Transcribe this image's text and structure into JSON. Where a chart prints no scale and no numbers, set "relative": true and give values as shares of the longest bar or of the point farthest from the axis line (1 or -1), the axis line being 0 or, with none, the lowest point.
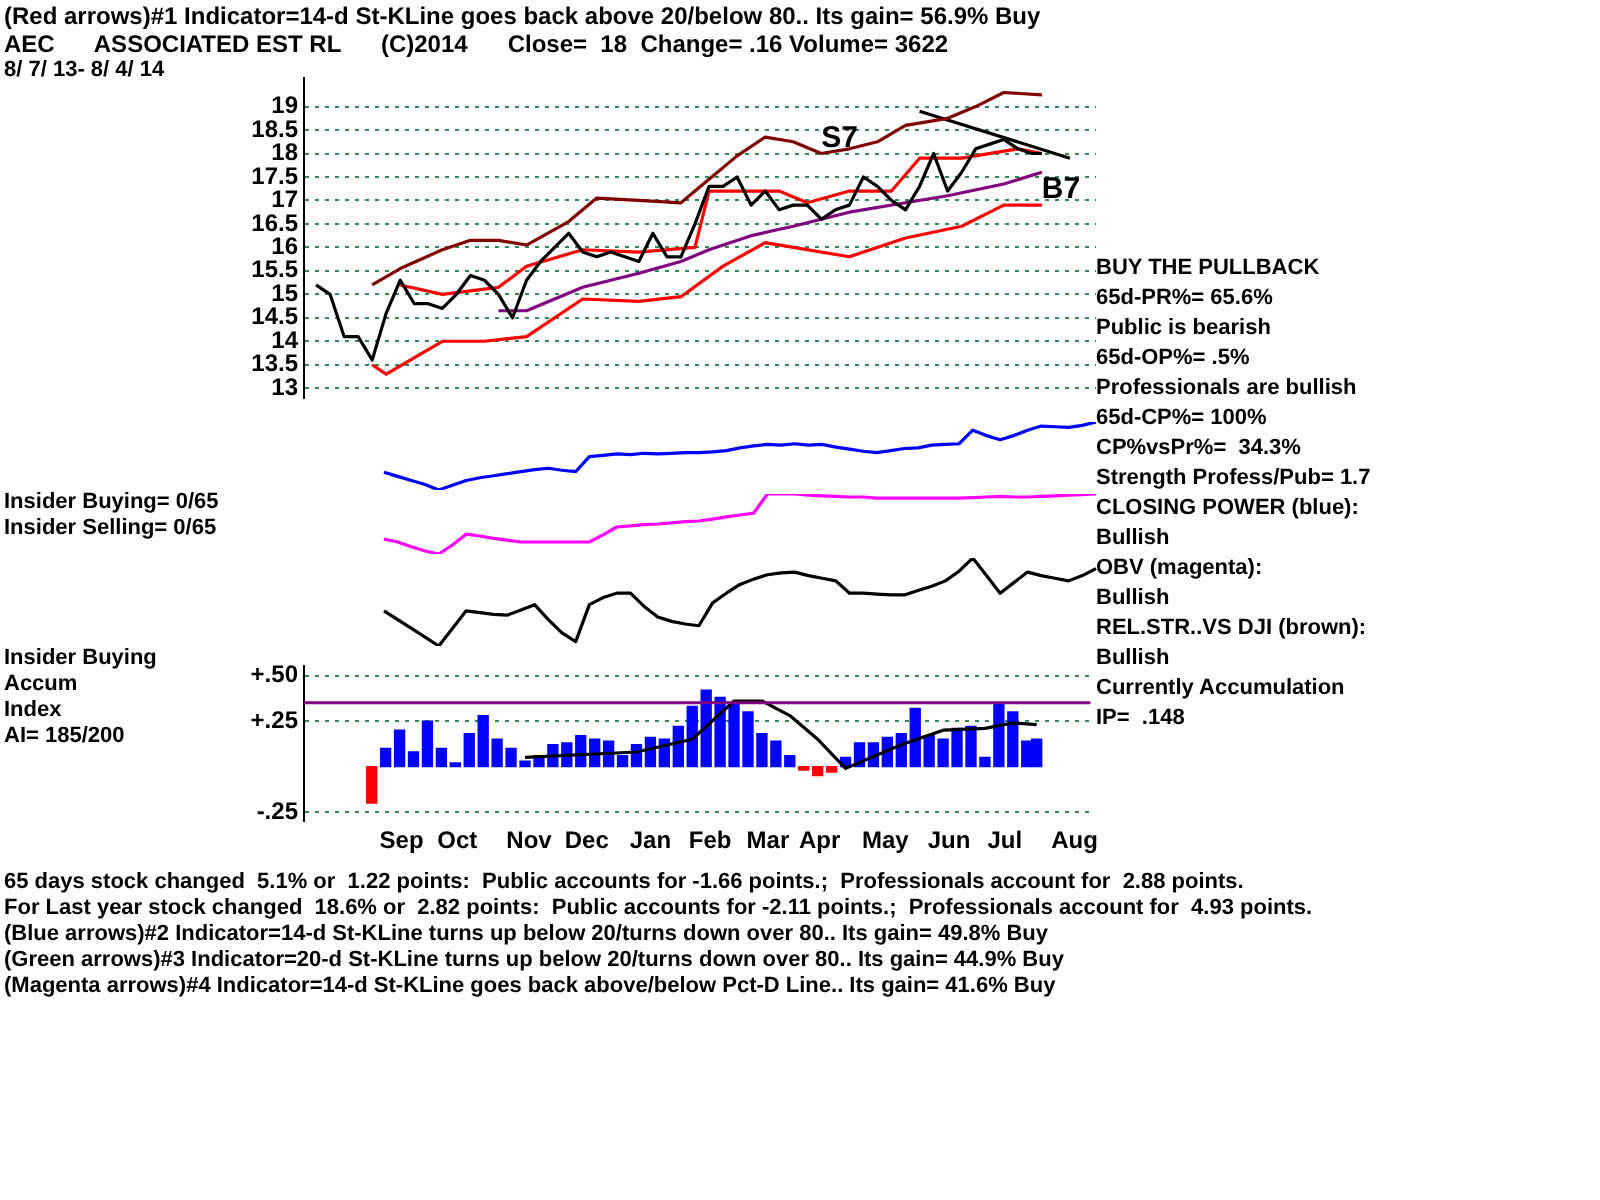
{
  "chart_data": [
    {
      "type": "line",
      "title": "(Red arrows)#1 Indicator=14-d St-KLine goes back above 20/below 80.. Its gain= 56.9% Buy",
      "subtitle": "AEC      ASSOCIATED EST RL      (C)2014      Close=  18  Change= .16 Volume= 3622",
      "x": [
        "2013-08-07",
        "2013-08-14",
        "2013-08-21",
        "2013-08-28",
        "2013-09-04",
        "2013-09-11",
        "2013-09-18",
        "2013-09-25",
        "2013-10-02",
        "2013-10-09",
        "2013-10-16",
        "2013-10-23",
        "2013-10-30",
        "2013-11-06",
        "2013-11-13",
        "2013-11-20",
        "2013-11-27",
        "2013-12-04",
        "2013-12-11",
        "2013-12-18",
        "2013-12-25",
        "2014-01-01",
        "2014-01-08",
        "2014-01-15",
        "2014-01-22",
        "2014-01-29",
        "2014-02-05",
        "2014-02-12",
        "2014-02-19",
        "2014-02-26",
        "2014-03-05",
        "2014-03-12",
        "2014-03-19",
        "2014-03-26",
        "2014-04-02",
        "2014-04-09",
        "2014-04-16",
        "2014-04-23",
        "2014-04-30",
        "2014-05-07",
        "2014-05-14",
        "2014-05-21",
        "2014-05-28",
        "2014-06-04",
        "2014-06-11",
        "2014-06-18",
        "2014-06-25",
        "2014-07-02",
        "2014-07-09",
        "2014-07-16",
        "2014-07-23",
        "2014-07-30",
        "2014-08-04"
      ],
      "series": [
        {
          "color": "#000000",
          "values": [
            15.2,
            15.0,
            14.1,
            14.1,
            13.6,
            14.6,
            15.3,
            14.8,
            14.8,
            14.7,
            15.0,
            15.4,
            15.3,
            15.0,
            14.5,
            15.3,
            15.7,
            16.0,
            16.3,
            15.9,
            15.8,
            15.9,
            15.8,
            15.7,
            16.3,
            15.8,
            15.8,
            16.5,
            17.3,
            17.3,
            17.5,
            16.9,
            17.2,
            16.8,
            16.9,
            16.9,
            16.6,
            16.8,
            16.9,
            17.5,
            17.3,
            17.0,
            16.8,
            17.3,
            18.0,
            17.2,
            17.6,
            18.1,
            18.2,
            18.3,
            18.1,
            18.0,
            18.0
          ]
        },
        {
          "color": "#800000",
          "x": [
            "2013-09-04",
            "2013-09-18",
            "2013-10-09",
            "2013-10-23",
            "2013-11-06",
            "2013-11-20",
            "2013-12-11",
            "2013-12-25",
            "2014-01-15",
            "2014-02-05",
            "2014-02-19",
            "2014-03-05",
            "2014-03-19",
            "2014-04-02",
            "2014-04-16",
            "2014-04-30",
            "2014-05-14",
            "2014-05-28",
            "2014-06-18",
            "2014-07-02",
            "2014-07-16",
            "2014-08-04"
          ],
          "values": [
            15.2,
            15.55,
            15.95,
            16.15,
            16.15,
            16.05,
            16.55,
            17.05,
            17.0,
            16.95,
            17.45,
            17.95,
            18.35,
            18.25,
            18.0,
            18.1,
            18.25,
            18.6,
            18.75,
            19.0,
            19.3,
            19.25
          ]
        },
        {
          "color": "#ff0000",
          "x": [
            "2013-09-18",
            "2013-10-09",
            "2013-11-06",
            "2013-11-20",
            "2013-12-18",
            "2014-01-15",
            "2014-02-12",
            "2014-02-19",
            "2014-03-05",
            "2014-03-26",
            "2014-04-09",
            "2014-04-30",
            "2014-05-21",
            "2014-06-04",
            "2014-06-25",
            "2014-07-23",
            "2014-08-04"
          ],
          "values": [
            15.2,
            15.0,
            15.15,
            15.6,
            15.95,
            15.9,
            16.0,
            17.2,
            17.2,
            17.2,
            16.95,
            17.2,
            17.2,
            17.9,
            17.9,
            18.1,
            18.0
          ]
        },
        {
          "color": "#ff0000",
          "x": [
            "2013-09-04",
            "2013-09-11",
            "2013-10-09",
            "2013-10-30",
            "2013-11-20",
            "2013-12-18",
            "2014-01-15",
            "2014-02-05",
            "2014-02-26",
            "2014-03-19",
            "2014-04-30",
            "2014-05-28",
            "2014-06-25",
            "2014-07-16",
            "2014-08-04"
          ],
          "values": [
            13.5,
            13.3,
            14.0,
            14.0,
            14.1,
            14.9,
            14.85,
            14.95,
            15.6,
            16.1,
            15.8,
            16.2,
            16.45,
            16.9,
            16.9
          ]
        },
        {
          "color": "#800080",
          "x": [
            "2013-11-06",
            "2013-11-20",
            "2013-12-18",
            "2014-01-15",
            "2014-02-05",
            "2014-02-19",
            "2014-03-12",
            "2014-04-02",
            "2014-04-30",
            "2014-05-28",
            "2014-06-18",
            "2014-07-16",
            "2014-08-04"
          ],
          "values": [
            14.65,
            14.65,
            15.15,
            15.45,
            15.7,
            15.95,
            16.25,
            16.45,
            16.75,
            16.95,
            17.1,
            17.35,
            17.6
          ]
        },
        {
          "color": "#000000",
          "x": [
            "2014-06-04",
            "2014-08-18"
          ],
          "values": [
            18.9,
            17.9
          ]
        }
      ],
      "xlim": [
        "2013-08-01",
        "2014-08-31"
      ],
      "ylim": [
        12.8,
        19.6
      ],
      "yticks": [
        13,
        13.5,
        14,
        14.5,
        15,
        15.5,
        16,
        16.5,
        17,
        17.5,
        18,
        18.5,
        19
      ],
      "grid": "y",
      "tick_labels": "y",
      "annotations": [
        "8/ 7/ 13- 8/ 4/ 14",
        {
          "text": "S7",
          "x": "2014-04-16",
          "y": 18.0
        },
        {
          "text": "B7",
          "x": "2014-08-04",
          "y": 16.9
        }
      ]
    },
    {
      "type": "line",
      "relative": true,
      "tick_labels": false,
      "categories": [
        null,
        null,
        null,
        null,
        null,
        null,
        null,
        null,
        null,
        null,
        null,
        null,
        null,
        null,
        null,
        null,
        null,
        null,
        null,
        null,
        null,
        null,
        null,
        null,
        null,
        null,
        null,
        null,
        null,
        null,
        null,
        null,
        null,
        null,
        null,
        null,
        null,
        null,
        null,
        null,
        null,
        null,
        null,
        null,
        null,
        null,
        null,
        null,
        null,
        null,
        null,
        null,
        null
      ],
      "series": [
        {
          "color": "#0000ff",
          "values": [
            0.26,
            0.2,
            0.14,
            0.08,
            0,
            0.07,
            0.14,
            0.18,
            0.21,
            0.24,
            0.27,
            0.3,
            0.32,
            0.29,
            0.27,
            0.49,
            0.51,
            0.53,
            0.52,
            0.54,
            0.53,
            0.54,
            0.55,
            0.55,
            0.56,
            0.58,
            0.62,
            0.65,
            0.67,
            0.66,
            0.68,
            0.66,
            0.67,
            0.63,
            0.6,
            0.57,
            0.55,
            0.58,
            0.61,
            0.62,
            0.66,
            0.67,
            0.68,
            0.88,
            0.8,
            0.74,
            0.8,
            0.88,
            0.94,
            0.93,
            0.92,
            0.95,
            1
          ]
        }
      ]
    },
    {
      "type": "line",
      "relative": true,
      "tick_labels": false,
      "annotations": [
        "Insider Buying= 0/65",
        "Insider Selling= 0/65"
      ],
      "categories": [
        null,
        null,
        null,
        null,
        null,
        null,
        null,
        null,
        null,
        null,
        null,
        null,
        null,
        null,
        null,
        null,
        null,
        null,
        null,
        null,
        null,
        null,
        null,
        null,
        null,
        null,
        null,
        null,
        null,
        null,
        null,
        null,
        null,
        null,
        null,
        null,
        null,
        null,
        null,
        null,
        null,
        null,
        null,
        null,
        null,
        null,
        null,
        null,
        null,
        null,
        null,
        null,
        null
      ],
      "series": [
        {
          "color": "#ff00ff",
          "values": [
            0.25,
            0.2,
            0.12,
            0.05,
            0,
            0.15,
            0.33,
            0.3,
            0.26,
            0.23,
            0.2,
            0.2,
            0.2,
            0.2,
            0.2,
            0.2,
            0.32,
            0.45,
            0.47,
            0.49,
            0.5,
            0.52,
            0.54,
            0.55,
            0.58,
            0.62,
            0.65,
            0.68,
            1.0,
            1.0,
            1.0,
            0.98,
            0.97,
            0.96,
            0.95,
            0.95,
            0.93,
            0.93,
            0.93,
            0.93,
            0.93,
            0.93,
            0.93,
            0.94,
            0.95,
            0.96,
            0.95,
            0.95,
            0.96,
            0.97,
            0.98,
            0.99,
            1.0
          ]
        }
      ]
    },
    {
      "type": "line",
      "relative": true,
      "tick_labels": false,
      "categories": [
        null,
        null,
        null,
        null,
        null,
        null,
        null,
        null,
        null,
        null,
        null,
        null,
        null,
        null,
        null,
        null,
        null,
        null,
        null,
        null,
        null,
        null,
        null,
        null,
        null,
        null,
        null,
        null,
        null,
        null,
        null,
        null,
        null,
        null,
        null,
        null,
        null,
        null,
        null,
        null,
        null,
        null,
        null,
        null,
        null,
        null,
        null,
        null,
        null,
        null,
        null,
        null,
        null
      ],
      "series": [
        {
          "color": "#000000",
          "values": [
            0.4,
            0.3,
            0.2,
            0.1,
            0,
            0.2,
            0.4,
            0.38,
            0.36,
            0.35,
            0.41,
            0.47,
            0.3,
            0.15,
            0.05,
            0.47,
            0.55,
            0.6,
            0.6,
            0.45,
            0.33,
            0.28,
            0.25,
            0.23,
            0.49,
            0.6,
            0.7,
            0.76,
            0.81,
            0.83,
            0.84,
            0.8,
            0.77,
            0.74,
            0.6,
            0.6,
            0.59,
            0.58,
            0.58,
            0.63,
            0.68,
            0.74,
            0.85,
            1.0,
            0.8,
            0.6,
            0.72,
            0.84,
            0.8,
            0.77,
            0.74,
            0.8,
            0.88
          ]
        }
      ]
    },
    {
      "type": "bar",
      "xlim": [
        "2013-08-01",
        "2014-08-31"
      ],
      "ylim": [
        -0.3,
        0.55
      ],
      "xticks": [
        {
          "value": "2013-09-19",
          "label": "Sep"
        },
        {
          "value": "2013-10-17",
          "label": "Oct"
        },
        {
          "value": "2013-11-22",
          "label": "Nov"
        },
        {
          "value": "2013-12-21",
          "label": "Dec"
        },
        {
          "value": "2014-01-22",
          "label": "Jan"
        },
        {
          "value": "2014-02-21",
          "label": "Feb"
        },
        {
          "value": "2014-03-22",
          "label": "Mar"
        },
        {
          "value": "2014-04-17",
          "label": "Apr"
        },
        {
          "value": "2014-05-20",
          "label": "May"
        },
        {
          "value": "2014-06-21",
          "label": "Jun"
        },
        {
          "value": "2014-07-19",
          "label": "Jul"
        },
        {
          "value": "2014-08-23",
          "label": "Aug"
        }
      ],
      "yticks": [
        {
          "value": -0.25,
          "label": "-.25"
        },
        {
          "value": 0.25,
          "label": "+.25"
        },
        {
          "value": 0.5,
          "label": "+.50"
        }
      ],
      "grid": "y",
      "annotations": [
        "Insider Buying",
        "Accum",
        "Index",
        "AI= 185/200"
      ],
      "ref_lines": [
        {
          "axis": "y",
          "value": 0.35,
          "color": "#800080"
        }
      ],
      "series": [
        {
          "x": [
            "2013-09-04",
            "2013-09-11",
            "2013-09-18",
            "2013-09-25",
            "2013-10-02",
            "2013-10-09",
            "2013-10-16",
            "2013-10-23",
            "2013-10-30",
            "2013-11-06",
            "2013-11-13",
            "2013-11-20",
            "2013-11-27",
            "2013-12-04",
            "2013-12-11",
            "2013-12-18",
            "2013-12-25",
            "2014-01-01",
            "2014-01-08",
            "2014-01-15",
            "2014-01-22",
            "2014-01-29",
            "2014-02-05",
            "2014-02-12",
            "2014-02-19",
            "2014-02-26",
            "2014-03-05",
            "2014-03-12",
            "2014-03-19",
            "2014-03-26",
            "2014-04-02",
            "2014-04-09",
            "2014-04-16",
            "2014-04-23",
            "2014-04-30",
            "2014-05-07",
            "2014-05-14",
            "2014-05-21",
            "2014-05-28",
            "2014-06-04",
            "2014-06-11",
            "2014-06-18",
            "2014-06-25",
            "2014-07-02",
            "2014-07-09",
            "2014-07-16",
            "2014-07-23",
            "2014-07-30",
            "2014-08-04"
          ],
          "values": [
            -0.2,
            0.1,
            0.2,
            0.08,
            0.25,
            0.1,
            0.02,
            0.18,
            0.28,
            0.15,
            0.1,
            0.03,
            0.06,
            0.12,
            0.13,
            0.17,
            0.15,
            0.14,
            0.06,
            0.12,
            0.16,
            0.15,
            0.22,
            0.33,
            0.42,
            0.38,
            0.34,
            0.3,
            0.18,
            0.14,
            0.06,
            -0.02,
            -0.05,
            -0.03,
            0.05,
            0.13,
            0.13,
            0.16,
            0.18,
            0.32,
            0.17,
            0.15,
            0.21,
            0.22,
            0.05,
            0.35,
            0.3,
            0.14,
            0.15
          ],
          "colors": [
            "#ff0000",
            "#0000ff",
            "#0000ff",
            "#0000ff",
            "#0000ff",
            "#0000ff",
            "#0000ff",
            "#0000ff",
            "#0000ff",
            "#0000ff",
            "#0000ff",
            "#0000ff",
            "#0000ff",
            "#0000ff",
            "#0000ff",
            "#0000ff",
            "#0000ff",
            "#0000ff",
            "#0000ff",
            "#0000ff",
            "#0000ff",
            "#0000ff",
            "#0000ff",
            "#0000ff",
            "#0000ff",
            "#0000ff",
            "#0000ff",
            "#0000ff",
            "#0000ff",
            "#0000ff",
            "#0000ff",
            "#ff0000",
            "#ff0000",
            "#ff0000",
            "#0000ff",
            "#0000ff",
            "#0000ff",
            "#0000ff",
            "#0000ff",
            "#0000ff",
            "#0000ff",
            "#0000ff",
            "#0000ff",
            "#0000ff",
            "#0000ff",
            "#0000ff",
            "#0000ff",
            "#0000ff",
            "#0000ff"
          ]
        },
        {
          "type": "line",
          "color": "#000000",
          "x": [
            "2013-11-20",
            "2014-01-15",
            "2014-02-12",
            "2014-03-05",
            "2014-03-19",
            "2014-04-02",
            "2014-04-16",
            "2014-04-30",
            "2014-05-28",
            "2014-06-18",
            "2014-07-09",
            "2014-07-23",
            "2014-08-04"
          ],
          "values": [
            0.05,
            0.08,
            0.15,
            0.36,
            0.36,
            0.28,
            0.15,
            -0.01,
            0.12,
            0.2,
            0.21,
            0.24,
            0.23
          ]
        }
      ]
    },
    {
      "type": "other",
      "annotations": [
        "BUY THE PULLBACK",
        "65d-PR%= 65.6%",
        "Public is bearish",
        "65d-OP%= .5%",
        "Professionals are bullish",
        "65d-CP%= 100%",
        "CP%vsPr%=  34.3%",
        "Strength Profess/Pub= 1.7",
        "CLOSING POWER (blue):",
        "Bullish",
        "OBV (magenta):",
        "Bullish",
        "REL.STR..VS DJI (brown):",
        "Bullish",
        "Currently Accumulation",
        "IP=  .148"
      ]
    },
    {
      "type": "other",
      "annotations": [
        "65 days stock changed  5.1% or  1.22 points:  Public accounts for -1.66 points.;  Professionals account for  2.88 points.",
        "For Last year stock changed  18.6% or  2.82 points:  Public accounts for -2.11 points.;  Professionals account for  4.93 points.",
        "(Blue arrows)#2 Indicator=14-d St-KLine turns up below 20/turns down over 80.. Its gain= 49.8% Buy",
        "(Green arrows)#3 Indicator=20-d St-KLine turns up below 20/turns down over 80.. Its gain= 44.9% Buy",
        "(Magenta arrows)#4 Indicator=14-d St-KLine goes back above/below Pct-D Line.. Its gain= 41.6% Buy"
      ]
    }
  ]
}
